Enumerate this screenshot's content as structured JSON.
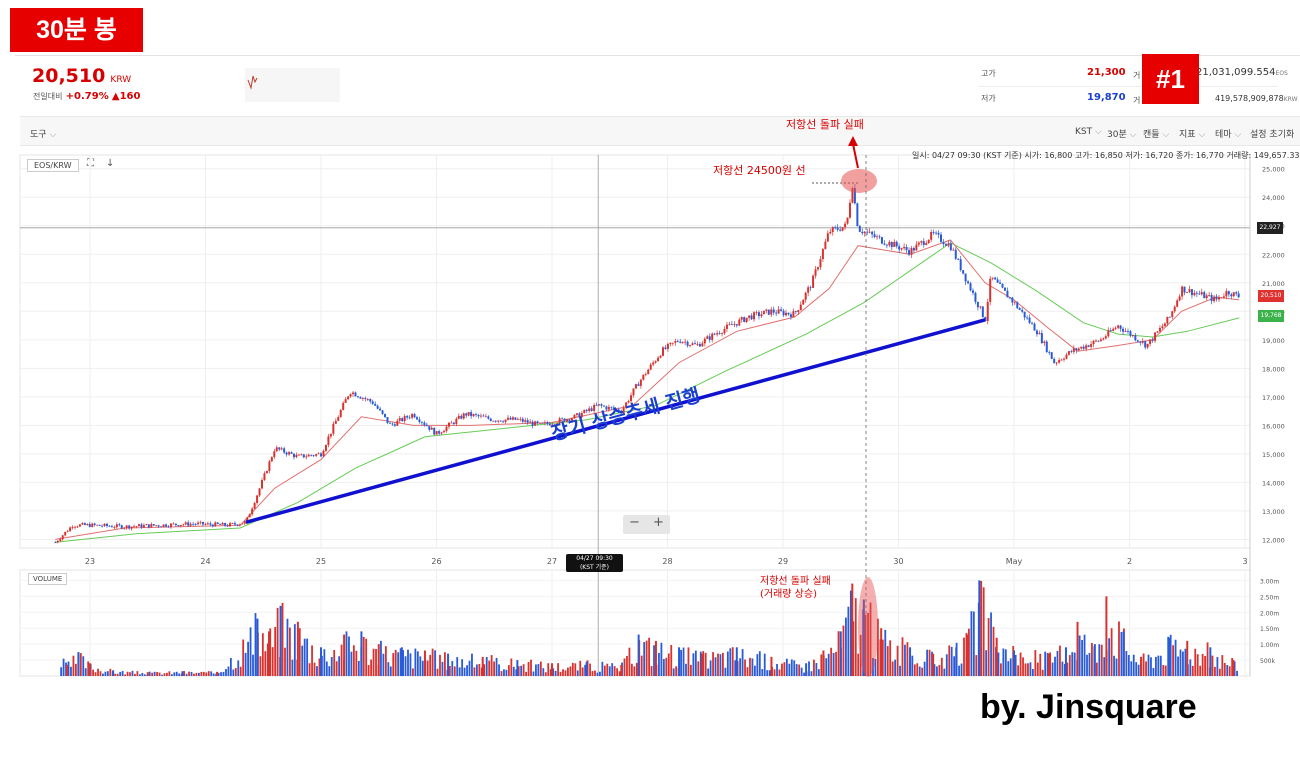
{
  "timeframe_badge": "30분 봉",
  "number_badge": "#1",
  "watermark": "by. Jinsquare",
  "ticker": {
    "price": "20,510",
    "currency": "KRW",
    "change_label": "전일대비",
    "change_pct": "+0.79%",
    "change_abs": "▲160",
    "high_label": "고가",
    "high_value": "21,300",
    "low_label": "저가",
    "low_value": "19,870",
    "volume_label": "거",
    "volume_value": "21,031,099.554",
    "volume_unit": "EOS",
    "amount_label": "거",
    "amount_value": "419,578,909,878",
    "amount_unit": "KRW"
  },
  "toolbar": {
    "tools": "도구",
    "timezone": "KST",
    "interval": "30분",
    "candle": "캔들",
    "indicator": "지표",
    "theme": "테마",
    "reset": "설정 초기화"
  },
  "chart": {
    "symbol": "EOS/KRW",
    "info_line": "일시: 04/27 09:30 (KST 기준) 시가: 16,800 고가: 16,850 저가: 16,720 종가: 16,770 거래량: 149,657.336",
    "crosshair_date": "04/27 09:30",
    "crosshair_tz": "(KST 기준)",
    "price_label_current": "20,510",
    "price_label_crosshair": "22,927",
    "price_label_ma": "19,768",
    "volume_label": "VOLUME",
    "zoom_minus": "−",
    "zoom_plus": "+"
  },
  "annotations": {
    "resistance_fail": "저항선 돌파 실패",
    "resistance_line": "저항선 24500원 선",
    "uptrend": "장기 상승추세 진행",
    "vol_fail_1": "저항선 돌파 실패",
    "vol_fail_2": "(거래량 상승)"
  },
  "chart_data": {
    "type": "line",
    "x": [
      "23",
      "24",
      "25",
      "26",
      "27",
      "28",
      "29",
      "30",
      "May",
      "2",
      "3"
    ],
    "y_ticks": [
      25000,
      24000,
      23000,
      22000,
      21000,
      20000,
      19000,
      18000,
      17000,
      16000,
      15000,
      14000,
      13000,
      12000
    ],
    "ylim": [
      11700,
      25200
    ],
    "price_path": [
      [
        22.7,
        11900
      ],
      [
        22.85,
        12500
      ],
      [
        23.0,
        12500
      ],
      [
        23.3,
        12450
      ],
      [
        23.6,
        12500
      ],
      [
        23.9,
        12550
      ],
      [
        24.2,
        12500
      ],
      [
        24.35,
        12600
      ],
      [
        24.45,
        13600
      ],
      [
        24.6,
        15200
      ],
      [
        24.8,
        14900
      ],
      [
        25.0,
        15000
      ],
      [
        25.1,
        15900
      ],
      [
        25.25,
        17200
      ],
      [
        25.45,
        16800
      ],
      [
        25.6,
        16000
      ],
      [
        25.8,
        16400
      ],
      [
        26.0,
        15700
      ],
      [
        26.25,
        16400
      ],
      [
        26.5,
        16200
      ],
      [
        26.7,
        16200
      ],
      [
        26.9,
        16000
      ],
      [
        27.2,
        16300
      ],
      [
        27.4,
        16700
      ],
      [
        27.6,
        16500
      ],
      [
        27.75,
        17500
      ],
      [
        27.95,
        18600
      ],
      [
        28.1,
        19000
      ],
      [
        28.25,
        18800
      ],
      [
        28.45,
        19300
      ],
      [
        28.7,
        19800
      ],
      [
        28.9,
        20000
      ],
      [
        29.1,
        19900
      ],
      [
        29.25,
        21000
      ],
      [
        29.4,
        22800
      ],
      [
        29.55,
        23000
      ],
      [
        29.6,
        24500
      ],
      [
        29.65,
        22900
      ],
      [
        29.85,
        22500
      ],
      [
        30.1,
        22100
      ],
      [
        30.3,
        22700
      ],
      [
        30.45,
        22300
      ],
      [
        30.6,
        21000
      ],
      [
        30.75,
        19700
      ],
      [
        30.8,
        21200
      ],
      [
        31.0,
        20300
      ],
      [
        31.2,
        19300
      ],
      [
        31.35,
        18200
      ],
      [
        31.5,
        18600
      ],
      [
        31.75,
        19000
      ],
      [
        31.9,
        19500
      ],
      [
        32.15,
        18800
      ],
      [
        32.35,
        19800
      ],
      [
        32.45,
        20800
      ],
      [
        32.6,
        20600
      ],
      [
        32.75,
        20400
      ],
      [
        32.85,
        20700
      ],
      [
        32.95,
        20510
      ]
    ],
    "ma_short": [
      [
        22.7,
        12000
      ],
      [
        23.3,
        12400
      ],
      [
        24.3,
        12500
      ],
      [
        24.6,
        13800
      ],
      [
        25.0,
        14800
      ],
      [
        25.35,
        16300
      ],
      [
        25.8,
        16000
      ],
      [
        26.3,
        16000
      ],
      [
        27.0,
        16100
      ],
      [
        27.7,
        16700
      ],
      [
        28.1,
        18200
      ],
      [
        28.6,
        19300
      ],
      [
        29.1,
        19800
      ],
      [
        29.4,
        20800
      ],
      [
        29.65,
        22300
      ],
      [
        30.1,
        22000
      ],
      [
        30.45,
        22500
      ],
      [
        30.75,
        21000
      ],
      [
        31.0,
        20400
      ],
      [
        31.3,
        19400
      ],
      [
        31.55,
        18600
      ],
      [
        31.9,
        18800
      ],
      [
        32.2,
        19000
      ],
      [
        32.45,
        20000
      ],
      [
        32.75,
        20500
      ],
      [
        32.95,
        20400
      ]
    ],
    "ma_long": [
      [
        22.7,
        11900
      ],
      [
        23.4,
        12200
      ],
      [
        24.3,
        12400
      ],
      [
        24.8,
        13300
      ],
      [
        25.3,
        14500
      ],
      [
        25.9,
        15600
      ],
      [
        26.6,
        15900
      ],
      [
        27.3,
        16200
      ],
      [
        27.9,
        16700
      ],
      [
        28.5,
        17900
      ],
      [
        29.2,
        19200
      ],
      [
        29.7,
        20300
      ],
      [
        30.2,
        21700
      ],
      [
        30.45,
        22400
      ],
      [
        30.8,
        21700
      ],
      [
        31.2,
        20700
      ],
      [
        31.6,
        19600
      ],
      [
        31.9,
        19200
      ],
      [
        32.2,
        19100
      ],
      [
        32.5,
        19300
      ],
      [
        32.95,
        19768
      ]
    ],
    "trendline": [
      [
        24.35,
        12600
      ],
      [
        30.75,
        19700
      ]
    ],
    "resistance": 24500,
    "volume": {
      "y_ticks": [
        "3.00m",
        "2.50m",
        "2.00m",
        "1.50m",
        "1.00m",
        "500k"
      ],
      "ylim": [
        0,
        3200000
      ],
      "bars": [
        [
          22.8,
          350000
        ],
        [
          22.9,
          750000
        ],
        [
          23.0,
          400000
        ],
        [
          23.2,
          180000
        ],
        [
          23.5,
          120000
        ],
        [
          23.8,
          150000
        ],
        [
          24.1,
          130000
        ],
        [
          24.45,
          1800000
        ],
        [
          24.55,
          1400000
        ],
        [
          24.65,
          2200000
        ],
        [
          24.8,
          1700000
        ],
        [
          25.0,
          900000
        ],
        [
          25.2,
          1300000
        ],
        [
          25.35,
          1400000
        ],
        [
          25.5,
          1000000
        ],
        [
          25.7,
          900000
        ],
        [
          25.9,
          800000
        ],
        [
          26.1,
          700000
        ],
        [
          26.4,
          600000
        ],
        [
          26.7,
          500000
        ],
        [
          27.0,
          400000
        ],
        [
          27.3,
          450000
        ],
        [
          27.6,
          350000
        ],
        [
          27.75,
          1300000
        ],
        [
          27.9,
          1100000
        ],
        [
          28.1,
          900000
        ],
        [
          28.3,
          700000
        ],
        [
          28.6,
          900000
        ],
        [
          28.9,
          600000
        ],
        [
          29.2,
          400000
        ],
        [
          29.35,
          800000
        ],
        [
          29.5,
          1400000
        ],
        [
          29.6,
          2900000
        ],
        [
          29.7,
          2400000
        ],
        [
          29.85,
          1500000
        ],
        [
          30.1,
          900000
        ],
        [
          30.3,
          700000
        ],
        [
          30.5,
          900000
        ],
        [
          30.6,
          1300000
        ],
        [
          30.7,
          3000000
        ],
        [
          30.85,
          1200000
        ],
        [
          31.0,
          800000
        ],
        [
          31.3,
          700000
        ],
        [
          31.45,
          900000
        ],
        [
          31.55,
          1700000
        ],
        [
          31.7,
          1000000
        ],
        [
          31.8,
          2500000
        ],
        [
          31.95,
          1400000
        ],
        [
          32.1,
          600000
        ],
        [
          32.35,
          1200000
        ],
        [
          32.5,
          1100000
        ],
        [
          32.7,
          900000
        ],
        [
          32.9,
          500000
        ]
      ]
    }
  }
}
